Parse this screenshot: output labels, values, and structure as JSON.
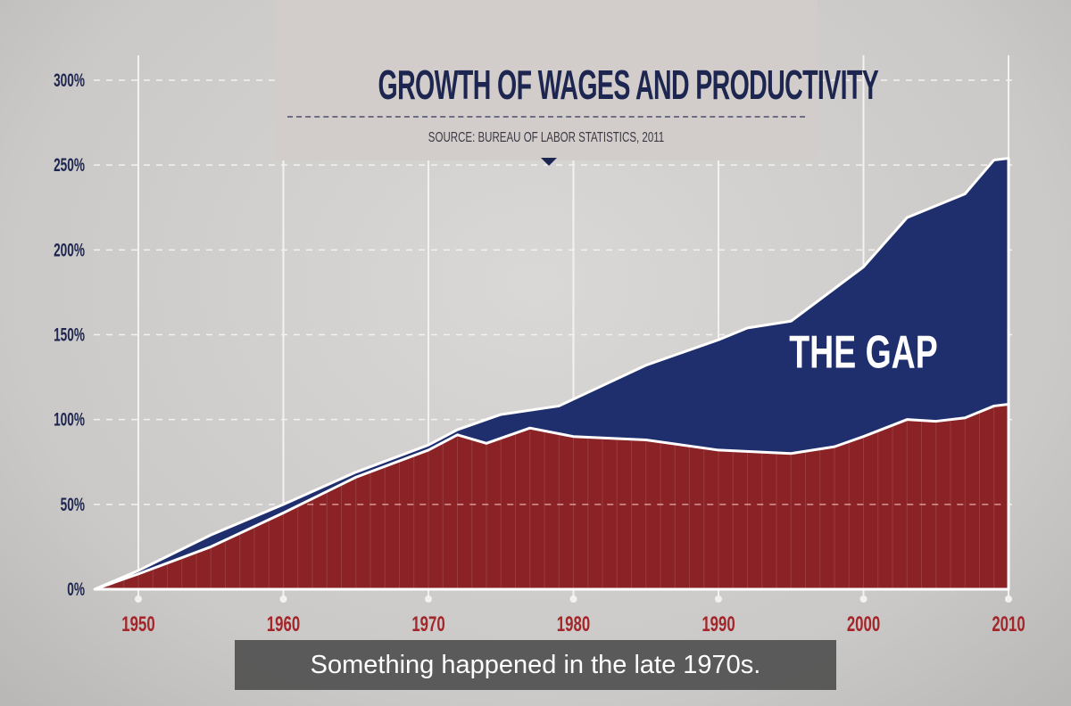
{
  "chart_data": {
    "type": "area",
    "title": "GROWTH OF WAGES AND PRODUCTIVITY",
    "subtitle": "SOURCE: BUREAU OF LABOR STATISTICS, 2011",
    "xlabel": "",
    "ylabel": "",
    "xlim": [
      1947,
      2010
    ],
    "ylim": [
      0,
      300
    ],
    "x_ticks": [
      1950,
      1960,
      1970,
      1980,
      1990,
      2000,
      2010
    ],
    "y_ticks": [
      0,
      50,
      100,
      150,
      200,
      250,
      300
    ],
    "y_tick_labels": [
      "0%",
      "50%",
      "100%",
      "150%",
      "200%",
      "250%",
      "300%"
    ],
    "grid": true,
    "series": [
      {
        "key": "productivity",
        "color": "#1f2f6e",
        "points": [
          [
            1947,
            0
          ],
          [
            1950,
            11
          ],
          [
            1955,
            32
          ],
          [
            1960,
            50
          ],
          [
            1965,
            69
          ],
          [
            1970,
            85
          ],
          [
            1972,
            94
          ],
          [
            1975,
            103
          ],
          [
            1979,
            108
          ],
          [
            1980,
            112
          ],
          [
            1985,
            132
          ],
          [
            1990,
            147
          ],
          [
            1992,
            154
          ],
          [
            1995,
            158
          ],
          [
            2000,
            190
          ],
          [
            2003,
            219
          ],
          [
            2007,
            233
          ],
          [
            2009,
            253
          ],
          [
            2010,
            254
          ]
        ]
      },
      {
        "key": "wages",
        "color": "#8a2226",
        "points": [
          [
            1947,
            0
          ],
          [
            1950,
            9
          ],
          [
            1955,
            25
          ],
          [
            1960,
            45
          ],
          [
            1965,
            66
          ],
          [
            1970,
            82
          ],
          [
            1972,
            91
          ],
          [
            1974,
            86
          ],
          [
            1977,
            95
          ],
          [
            1980,
            90
          ],
          [
            1985,
            88
          ],
          [
            1990,
            82
          ],
          [
            1995,
            80
          ],
          [
            1998,
            84
          ],
          [
            2000,
            90
          ],
          [
            2003,
            100
          ],
          [
            2005,
            99
          ],
          [
            2007,
            101
          ],
          [
            2009,
            108
          ],
          [
            2010,
            109
          ]
        ]
      }
    ],
    "annotations": [
      {
        "text": "THE GAP",
        "x": 2000,
        "y": 140
      }
    ]
  },
  "colors": {
    "gap": "#1f2f6e",
    "wages": "#8a2226",
    "axis_labels_y": "#1d2650",
    "axis_labels_x": "#a3262a"
  },
  "caption": "Something happened in the late 1970s."
}
